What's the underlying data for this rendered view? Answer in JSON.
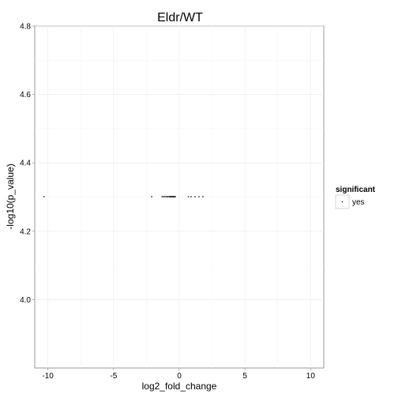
{
  "chart_data": {
    "type": "scatter",
    "title": "Eldr/WT",
    "xlabel": "log2_fold_change",
    "ylabel": "-log10(p_value)",
    "xlim": [
      -11,
      11
    ],
    "ylim": [
      3.8,
      4.8
    ],
    "xticks": [
      -10,
      -5,
      0,
      5,
      10
    ],
    "xtick_labels": [
      "-10",
      "-5",
      "0",
      "5",
      "10"
    ],
    "yticks": [
      4.0,
      4.2,
      4.4,
      4.6,
      4.8
    ],
    "ytick_labels": [
      "4.0",
      "4.2",
      "4.4",
      "4.6",
      "4.8"
    ],
    "grid": true,
    "legend": {
      "title": "significant",
      "entries": [
        "yes"
      ],
      "position": "right"
    },
    "series": [
      {
        "name": "yes",
        "color": "#000000",
        "points": [
          [
            -10.3,
            4.301
          ],
          [
            -2.1,
            4.301
          ],
          [
            -1.3,
            4.301
          ],
          [
            -1.2,
            4.301
          ],
          [
            -1.1,
            4.301
          ],
          [
            -1.0,
            4.301
          ],
          [
            -0.9,
            4.301
          ],
          [
            -0.85,
            4.301
          ],
          [
            -0.75,
            4.301
          ],
          [
            -0.7,
            4.301
          ],
          [
            -0.65,
            4.301
          ],
          [
            -0.6,
            4.301
          ],
          [
            -0.55,
            4.301
          ],
          [
            -0.5,
            4.301
          ],
          [
            -0.45,
            4.301
          ],
          [
            -0.4,
            4.301
          ],
          [
            -0.35,
            4.301
          ],
          [
            -0.3,
            4.301
          ],
          [
            0.7,
            4.301
          ],
          [
            0.9,
            4.301
          ],
          [
            1.2,
            4.301
          ],
          [
            1.5,
            4.301
          ],
          [
            1.8,
            4.301
          ]
        ]
      }
    ]
  }
}
